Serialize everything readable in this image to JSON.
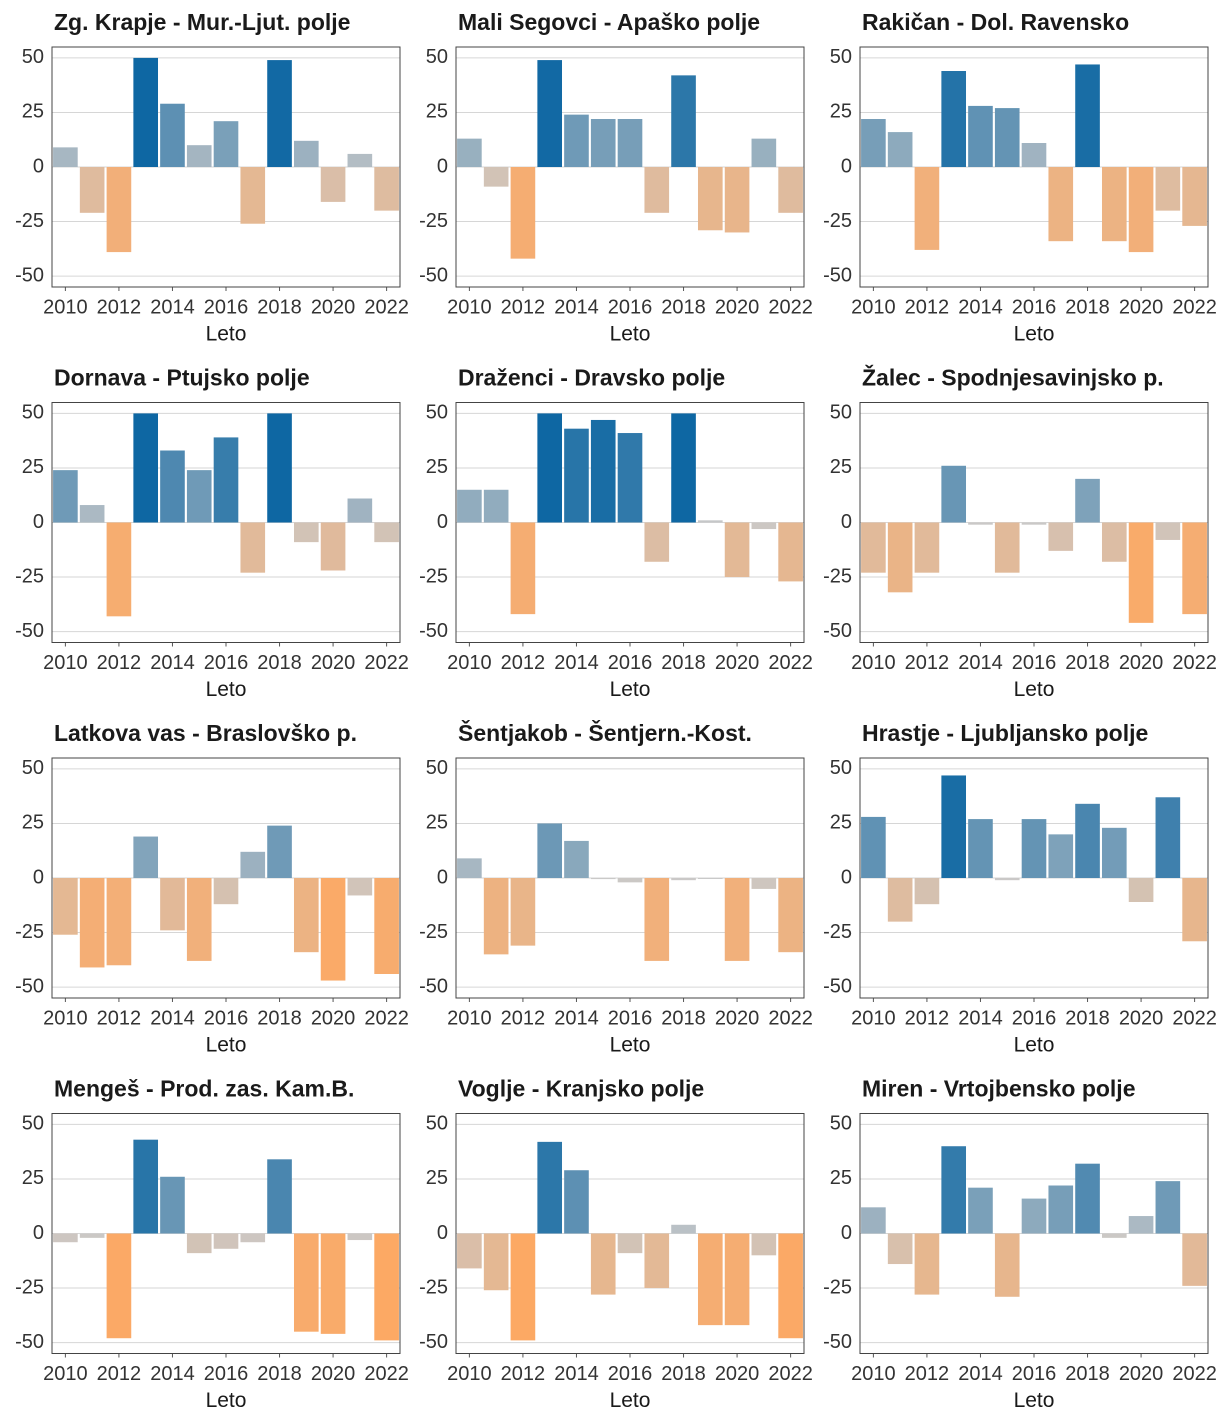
{
  "chart_data": [
    {
      "type": "bar",
      "title": "Zg. Krapje - Mur.-Ljut. polje",
      "xlabel": "Leto",
      "x": [
        2010,
        2011,
        2012,
        2013,
        2014,
        2015,
        2016,
        2017,
        2018,
        2019,
        2020,
        2021,
        2022
      ],
      "values": [
        9,
        -21,
        -39,
        50,
        29,
        10,
        21,
        -26,
        49,
        12,
        -16,
        6,
        -20
      ],
      "xlim": [
        2009.5,
        2022.5
      ],
      "xticks": [
        2010,
        2012,
        2014,
        2016,
        2018,
        2020,
        2022
      ],
      "ylim": [
        -55,
        55
      ],
      "yticks": [
        -50,
        -25,
        0,
        25,
        50
      ],
      "grid": true,
      "colors": {
        "negative": "#fda862",
        "neutral": "#c9c9c9",
        "positive": "#0e67a3"
      }
    },
    {
      "type": "bar",
      "title": "Mali Segovci - Apaško polje",
      "xlabel": "Leto",
      "x": [
        2010,
        2011,
        2012,
        2013,
        2014,
        2015,
        2016,
        2017,
        2018,
        2019,
        2020,
        2021,
        2022
      ],
      "values": [
        13,
        -9,
        -42,
        49,
        24,
        22,
        22,
        -21,
        42,
        -29,
        -30,
        13,
        -21
      ],
      "xlim": [
        2009.5,
        2022.5
      ],
      "xticks": [
        2010,
        2012,
        2014,
        2016,
        2018,
        2020,
        2022
      ],
      "ylim": [
        -55,
        55
      ],
      "yticks": [
        -50,
        -25,
        0,
        25,
        50
      ],
      "grid": true,
      "colors": {
        "negative": "#fda862",
        "neutral": "#c9c9c9",
        "positive": "#0e67a3"
      }
    },
    {
      "type": "bar",
      "title": "Rakičan - Dol. Ravensko",
      "xlabel": "Leto",
      "x": [
        2010,
        2011,
        2012,
        2013,
        2014,
        2015,
        2016,
        2017,
        2018,
        2019,
        2020,
        2021,
        2022
      ],
      "values": [
        22,
        16,
        -38,
        44,
        28,
        27,
        11,
        -34,
        47,
        -34,
        -39,
        -20,
        -27
      ],
      "xlim": [
        2009.5,
        2022.5
      ],
      "xticks": [
        2010,
        2012,
        2014,
        2016,
        2018,
        2020,
        2022
      ],
      "ylim": [
        -55,
        55
      ],
      "yticks": [
        -50,
        -25,
        0,
        25,
        50
      ],
      "grid": true,
      "colors": {
        "negative": "#fda862",
        "neutral": "#c9c9c9",
        "positive": "#0e67a3"
      }
    },
    {
      "type": "bar",
      "title": "Dornava - Ptujsko polje",
      "xlabel": "Leto",
      "x": [
        2010,
        2011,
        2012,
        2013,
        2014,
        2015,
        2016,
        2017,
        2018,
        2019,
        2020,
        2021,
        2022
      ],
      "values": [
        24,
        8,
        -43,
        50,
        33,
        24,
        39,
        -23,
        50,
        -9,
        -22,
        11,
        -9
      ],
      "xlim": [
        2009.5,
        2022.5
      ],
      "xticks": [
        2010,
        2012,
        2014,
        2016,
        2018,
        2020,
        2022
      ],
      "ylim": [
        -55,
        55
      ],
      "yticks": [
        -50,
        -25,
        0,
        25,
        50
      ],
      "grid": true,
      "colors": {
        "negative": "#fda862",
        "neutral": "#c9c9c9",
        "positive": "#0e67a3"
      }
    },
    {
      "type": "bar",
      "title": "Draženci - Dravsko polje",
      "xlabel": "Leto",
      "x": [
        2010,
        2011,
        2012,
        2013,
        2014,
        2015,
        2016,
        2017,
        2018,
        2019,
        2020,
        2021,
        2022
      ],
      "values": [
        15,
        15,
        -42,
        50,
        43,
        47,
        41,
        -18,
        50,
        1,
        -25,
        -3,
        -27
      ],
      "xlim": [
        2009.5,
        2022.5
      ],
      "xticks": [
        2010,
        2012,
        2014,
        2016,
        2018,
        2020,
        2022
      ],
      "ylim": [
        -55,
        55
      ],
      "yticks": [
        -50,
        -25,
        0,
        25,
        50
      ],
      "grid": true,
      "colors": {
        "negative": "#fda862",
        "neutral": "#c9c9c9",
        "positive": "#0e67a3"
      }
    },
    {
      "type": "bar",
      "title": "Žalec - Spodnjesavinjsko p.",
      "xlabel": "Leto",
      "x": [
        2010,
        2011,
        2012,
        2013,
        2014,
        2015,
        2016,
        2017,
        2018,
        2019,
        2020,
        2021,
        2022
      ],
      "values": [
        -23,
        -32,
        -23,
        26,
        -1,
        -23,
        -1,
        -13,
        20,
        -18,
        -46,
        -8,
        -42
      ],
      "xlim": [
        2009.5,
        2022.5
      ],
      "xticks": [
        2010,
        2012,
        2014,
        2016,
        2018,
        2020,
        2022
      ],
      "ylim": [
        -55,
        55
      ],
      "yticks": [
        -50,
        -25,
        0,
        25,
        50
      ],
      "grid": true,
      "colors": {
        "negative": "#fda862",
        "neutral": "#c9c9c9",
        "positive": "#0e67a3"
      }
    },
    {
      "type": "bar",
      "title": "Latkova vas - Braslovško p.",
      "xlabel": "Leto",
      "x": [
        2010,
        2011,
        2012,
        2013,
        2014,
        2015,
        2016,
        2017,
        2018,
        2019,
        2020,
        2021,
        2022
      ],
      "values": [
        -26,
        -41,
        -40,
        19,
        -24,
        -38,
        -12,
        12,
        24,
        -34,
        -47,
        -8,
        -44
      ],
      "xlim": [
        2009.5,
        2022.5
      ],
      "xticks": [
        2010,
        2012,
        2014,
        2016,
        2018,
        2020,
        2022
      ],
      "ylim": [
        -55,
        55
      ],
      "yticks": [
        -50,
        -25,
        0,
        25,
        50
      ],
      "grid": true,
      "colors": {
        "negative": "#fda862",
        "neutral": "#c9c9c9",
        "positive": "#0e67a3"
      }
    },
    {
      "type": "bar",
      "title": "Šentjakob - Šentjern.-Kost.",
      "xlabel": "Leto",
      "x": [
        2010,
        2011,
        2012,
        2013,
        2014,
        2015,
        2016,
        2017,
        2018,
        2019,
        2020,
        2021,
        2022
      ],
      "values": [
        9,
        -35,
        -31,
        25,
        17,
        -0.5,
        -2,
        -38,
        -1,
        0,
        -38,
        -5,
        -34
      ],
      "xlim": [
        2009.5,
        2022.5
      ],
      "xticks": [
        2010,
        2012,
        2014,
        2016,
        2018,
        2020,
        2022
      ],
      "ylim": [
        -55,
        55
      ],
      "yticks": [
        -50,
        -25,
        0,
        25,
        50
      ],
      "grid": true,
      "colors": {
        "negative": "#fda862",
        "neutral": "#c9c9c9",
        "positive": "#0e67a3"
      }
    },
    {
      "type": "bar",
      "title": "Hrastje - Ljubljansko polje",
      "xlabel": "Leto",
      "x": [
        2010,
        2011,
        2012,
        2013,
        2014,
        2015,
        2016,
        2017,
        2018,
        2019,
        2020,
        2021,
        2022
      ],
      "values": [
        28,
        -20,
        -12,
        47,
        27,
        -1,
        27,
        20,
        34,
        23,
        -11,
        37,
        -29
      ],
      "xlim": [
        2009.5,
        2022.5
      ],
      "xticks": [
        2010,
        2012,
        2014,
        2016,
        2018,
        2020,
        2022
      ],
      "ylim": [
        -55,
        55
      ],
      "yticks": [
        -50,
        -25,
        0,
        25,
        50
      ],
      "grid": true,
      "colors": {
        "negative": "#fda862",
        "neutral": "#c9c9c9",
        "positive": "#0e67a3"
      }
    },
    {
      "type": "bar",
      "title": "Mengeš - Prod. zas. Kam.B.",
      "xlabel": "Leto",
      "x": [
        2010,
        2011,
        2012,
        2013,
        2014,
        2015,
        2016,
        2017,
        2018,
        2019,
        2020,
        2021,
        2022
      ],
      "values": [
        -4,
        -2,
        -48,
        43,
        26,
        -9,
        -7,
        -4,
        34,
        -45,
        -46,
        -3,
        -49
      ],
      "xlim": [
        2009.5,
        2022.5
      ],
      "xticks": [
        2010,
        2012,
        2014,
        2016,
        2018,
        2020,
        2022
      ],
      "ylim": [
        -55,
        55
      ],
      "yticks": [
        -50,
        -25,
        0,
        25,
        50
      ],
      "grid": true,
      "colors": {
        "negative": "#fda862",
        "neutral": "#c9c9c9",
        "positive": "#0e67a3"
      }
    },
    {
      "type": "bar",
      "title": "Voglje - Kranjsko polje",
      "xlabel": "Leto",
      "x": [
        2010,
        2011,
        2012,
        2013,
        2014,
        2015,
        2016,
        2017,
        2018,
        2019,
        2020,
        2021,
        2022
      ],
      "values": [
        -16,
        -26,
        -49,
        42,
        29,
        -28,
        -9,
        -25,
        4,
        -42,
        -42,
        -10,
        -48
      ],
      "xlim": [
        2009.5,
        2022.5
      ],
      "xticks": [
        2010,
        2012,
        2014,
        2016,
        2018,
        2020,
        2022
      ],
      "ylim": [
        -55,
        55
      ],
      "yticks": [
        -50,
        -25,
        0,
        25,
        50
      ],
      "grid": true,
      "colors": {
        "negative": "#fda862",
        "neutral": "#c9c9c9",
        "positive": "#0e67a3"
      }
    },
    {
      "type": "bar",
      "title": "Miren - Vrtojbensko polje",
      "xlabel": "Leto",
      "x": [
        2010,
        2011,
        2012,
        2013,
        2014,
        2015,
        2016,
        2017,
        2018,
        2019,
        2020,
        2021,
        2022
      ],
      "values": [
        12,
        -14,
        -28,
        40,
        21,
        -29,
        16,
        22,
        32,
        -2,
        8,
        24,
        -24
      ],
      "xlim": [
        2009.5,
        2022.5
      ],
      "xticks": [
        2010,
        2012,
        2014,
        2016,
        2018,
        2020,
        2022
      ],
      "ylim": [
        -55,
        55
      ],
      "yticks": [
        -50,
        -25,
        0,
        25,
        50
      ],
      "grid": true,
      "colors": {
        "negative": "#fda862",
        "neutral": "#c9c9c9",
        "positive": "#0e67a3"
      }
    }
  ]
}
